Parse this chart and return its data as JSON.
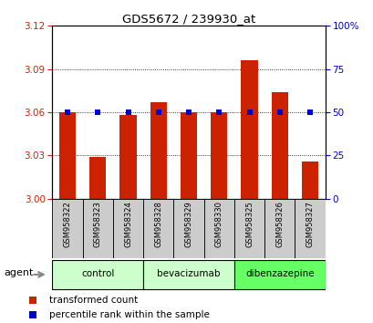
{
  "title": "GDS5672 / 239930_at",
  "samples": [
    "GSM958322",
    "GSM958323",
    "GSM958324",
    "GSM958328",
    "GSM958329",
    "GSM958330",
    "GSM958325",
    "GSM958326",
    "GSM958327"
  ],
  "bar_values": [
    3.06,
    3.029,
    3.058,
    3.067,
    3.06,
    3.06,
    3.096,
    3.074,
    3.026
  ],
  "dot_values": [
    50,
    50,
    50,
    50,
    50,
    50,
    50,
    50,
    50
  ],
  "bar_color": "#cc2200",
  "dot_color": "#0000cc",
  "ylim_left": [
    3.0,
    3.12
  ],
  "ylim_right": [
    0,
    100
  ],
  "yticks_left": [
    3.0,
    3.03,
    3.06,
    3.09,
    3.12
  ],
  "yticks_right": [
    0,
    25,
    50,
    75,
    100
  ],
  "group_boundaries": [
    [
      0,
      2,
      "control",
      "#ccffcc"
    ],
    [
      3,
      5,
      "bevacizumab",
      "#ccffcc"
    ],
    [
      6,
      8,
      "dibenzazepine",
      "#66ff66"
    ]
  ],
  "agent_label": "agent",
  "legend_bar_label": "transformed count",
  "legend_dot_label": "percentile rank within the sample",
  "tick_color_left": "#cc2200",
  "tick_color_right": "#0000cc",
  "bar_width": 0.55,
  "sample_box_color": "#cccccc",
  "grid_linestyle": "dotted"
}
